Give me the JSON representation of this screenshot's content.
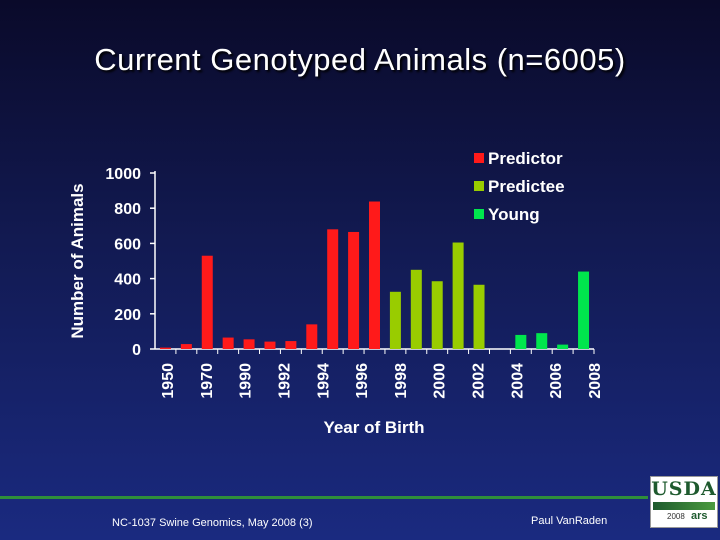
{
  "slide": {
    "title": "Current Genotyped Animals (n=6005)",
    "footer_left": "NC-1037 Swine Genomics, May 2008 (3)",
    "footer_right": "Paul VanRaden",
    "logo_text": "USDA",
    "logo_year": "2008",
    "logo_sub": "ars"
  },
  "colors": {
    "predictor": "#ff1a1a",
    "predictee": "#99cc00",
    "young": "#00e64d",
    "axis": "#ffffff"
  },
  "chart_data": {
    "type": "bar",
    "xlabel": "Year of Birth",
    "ylabel": "Number of Animals",
    "ylim": [
      0,
      1000
    ],
    "yticks": [
      0,
      200,
      400,
      600,
      800,
      1000
    ],
    "xtick_labels": [
      "1950",
      "1970",
      "1990",
      "1992",
      "1994",
      "1996",
      "1998",
      "2000",
      "2002",
      "2004",
      "2006",
      "2008"
    ],
    "legend": [
      "Predictor",
      "Predictee",
      "Young"
    ],
    "legend_position": "top-right",
    "bars": [
      {
        "year": 1950,
        "value": 8,
        "group": "Predictor"
      },
      {
        "year": 1960,
        "value": 28,
        "group": "Predictor"
      },
      {
        "year": 1970,
        "value": 530,
        "group": "Predictor"
      },
      {
        "year": 1980,
        "value": 65,
        "group": "Predictor"
      },
      {
        "year": 1990,
        "value": 55,
        "group": "Predictor"
      },
      {
        "year": 1991,
        "value": 42,
        "group": "Predictor"
      },
      {
        "year": 1992,
        "value": 45,
        "group": "Predictor"
      },
      {
        "year": 1993,
        "value": 140,
        "group": "Predictor"
      },
      {
        "year": 1994,
        "value": 680,
        "group": "Predictor"
      },
      {
        "year": 1995,
        "value": 665,
        "group": "Predictor"
      },
      {
        "year": 1996,
        "value": 838,
        "group": "Predictor"
      },
      {
        "year": 1997,
        "value": 325,
        "group": "Predictee"
      },
      {
        "year": 1998,
        "value": 450,
        "group": "Predictee"
      },
      {
        "year": 1999,
        "value": 385,
        "group": "Predictee"
      },
      {
        "year": 2000,
        "value": 605,
        "group": "Predictee"
      },
      {
        "year": 2001,
        "value": 365,
        "group": "Predictee"
      },
      {
        "year": 2002,
        "value": 0,
        "group": "Young"
      },
      {
        "year": 2003,
        "value": 80,
        "group": "Young"
      },
      {
        "year": 2004,
        "value": 90,
        "group": "Young"
      },
      {
        "year": 2005,
        "value": 25,
        "group": "Young"
      },
      {
        "year": 2006,
        "value": 440,
        "group": "Young"
      }
    ]
  }
}
